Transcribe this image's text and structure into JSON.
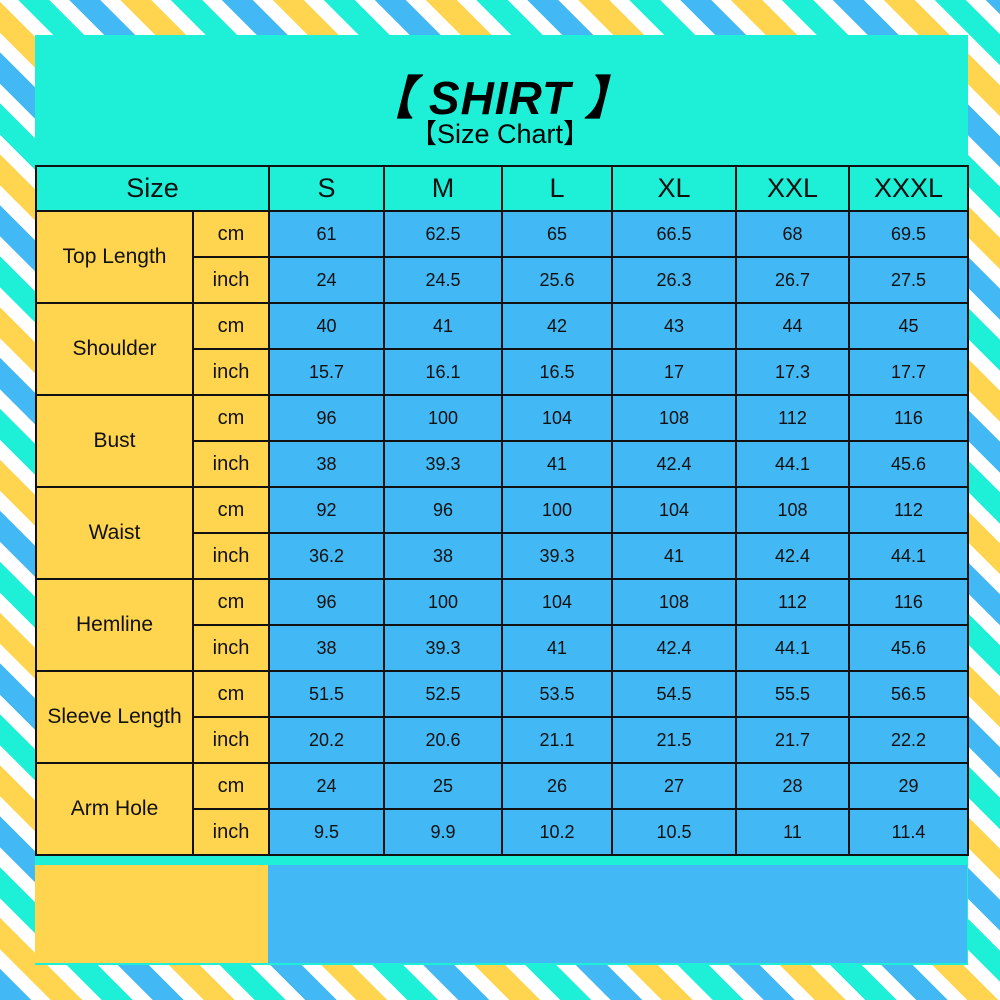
{
  "title": "【 SHIRT 】",
  "subtitle": "【Size Chart】",
  "colors": {
    "teal": "#1ef0d8",
    "blue": "#42b8f5",
    "yellow": "#ffd54f"
  },
  "header": {
    "size_label": "Size",
    "sizes": [
      "S",
      "M",
      "L",
      "XL",
      "XXL",
      "XXXL"
    ]
  },
  "measurements": [
    {
      "name": "Top Length",
      "cm": [
        "61",
        "62.5",
        "65",
        "66.5",
        "68",
        "69.5"
      ],
      "inch": [
        "24",
        "24.5",
        "25.6",
        "26.3",
        "26.7",
        "27.5"
      ]
    },
    {
      "name": "Shoulder",
      "cm": [
        "40",
        "41",
        "42",
        "43",
        "44",
        "45"
      ],
      "inch": [
        "15.7",
        "16.1",
        "16.5",
        "17",
        "17.3",
        "17.7"
      ]
    },
    {
      "name": "Bust",
      "cm": [
        "96",
        "100",
        "104",
        "108",
        "112",
        "116"
      ],
      "inch": [
        "38",
        "39.3",
        "41",
        "42.4",
        "44.1",
        "45.6"
      ]
    },
    {
      "name": "Waist",
      "cm": [
        "92",
        "96",
        "100",
        "104",
        "108",
        "112"
      ],
      "inch": [
        "36.2",
        "38",
        "39.3",
        "41",
        "42.4",
        "44.1"
      ]
    },
    {
      "name": "Hemline",
      "cm": [
        "96",
        "100",
        "104",
        "108",
        "112",
        "116"
      ],
      "inch": [
        "38",
        "39.3",
        "41",
        "42.4",
        "44.1",
        "45.6"
      ]
    },
    {
      "name": "Sleeve Length",
      "cm": [
        "51.5",
        "52.5",
        "53.5",
        "54.5",
        "55.5",
        "56.5"
      ],
      "inch": [
        "20.2",
        "20.6",
        "21.1",
        "21.5",
        "21.7",
        "22.2"
      ]
    },
    {
      "name": "Arm Hole",
      "cm": [
        "24",
        "25",
        "26",
        "27",
        "28",
        "29"
      ],
      "inch": [
        "9.5",
        "9.9",
        "10.2",
        "10.5",
        "11",
        "11.4"
      ]
    }
  ],
  "units": {
    "cm": "cm",
    "inch": "inch"
  }
}
